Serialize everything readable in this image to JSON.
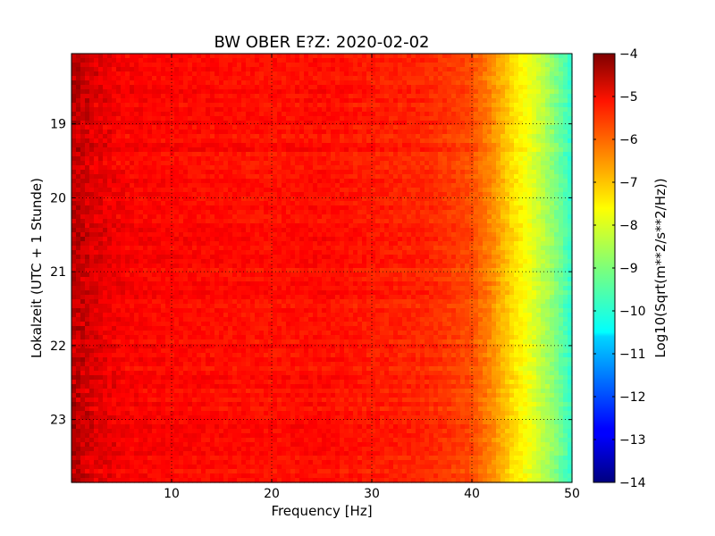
{
  "chart_data": {
    "type": "heatmap",
    "title": "BW OBER E?Z: 2020-02-02",
    "xlabel": "Frequency [Hz]",
    "ylabel": "Lokalzeit (UTC + 1 Stunde)",
    "xlim": [
      0,
      50
    ],
    "ylim": [
      18.05,
      23.85
    ],
    "x_ticks": [
      10,
      20,
      30,
      40,
      50
    ],
    "x_tick_labels": [
      "10",
      "20",
      "30",
      "40",
      "50"
    ],
    "y_ticks": [
      19,
      20,
      21,
      22,
      23
    ],
    "y_tick_labels": [
      "19",
      "20",
      "21",
      "22",
      "23"
    ],
    "y_inverted": true,
    "grid": true,
    "colormap": "jet",
    "colorbar": {
      "label": "Log10(Sqrt(m**2/s**2/Hz))",
      "range": [
        -14,
        -4
      ],
      "ticks": [
        -4,
        -5,
        -6,
        -7,
        -8,
        -9,
        -10,
        -11,
        -12,
        -13,
        -14
      ],
      "tick_labels": [
        "−4",
        "−5",
        "−6",
        "−7",
        "−8",
        "−9",
        "−10",
        "−11",
        "−12",
        "−13",
        "−14"
      ]
    },
    "frequency_profile_hz": [
      0.5,
      2,
      5,
      10,
      20,
      25,
      30,
      35,
      38,
      40,
      42,
      44,
      46,
      48,
      50
    ],
    "frequency_profile_level": [
      -4.6,
      -4.9,
      -5.2,
      -5.3,
      -5.4,
      -5.35,
      -5.5,
      -5.6,
      -5.8,
      -6.0,
      -6.6,
      -7.4,
      -8.0,
      -8.8,
      -9.8
    ]
  }
}
